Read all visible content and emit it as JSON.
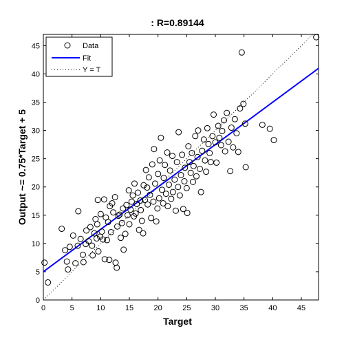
{
  "chart_data": {
    "type": "scatter",
    "title": ": R=0.89144",
    "xlabel": "Target",
    "ylabel": "Output ~= 0.75*Target + 5",
    "xlim": [
      0,
      48
    ],
    "ylim": [
      0,
      47
    ],
    "xticks": [
      0,
      5,
      10,
      15,
      20,
      25,
      30,
      35,
      40,
      45
    ],
    "yticks": [
      0,
      5,
      10,
      15,
      20,
      25,
      30,
      35,
      40,
      45
    ],
    "grid": false,
    "legend_position": "top-left",
    "legend": [
      {
        "label": "Data",
        "style": "circle"
      },
      {
        "label": "Fit",
        "style": "solid-line"
      },
      {
        "label": "Y = T",
        "style": "dotted-line"
      }
    ],
    "fit": {
      "slope": 0.75,
      "intercept": 5,
      "color": "#0000ff"
    },
    "identity_color": "#000000",
    "marker_color": "#000000",
    "series": [
      {
        "name": "Data",
        "points": [
          [
            0.2,
            6.6
          ],
          [
            0.8,
            3.1
          ],
          [
            3.2,
            12.6
          ],
          [
            3.8,
            8.8
          ],
          [
            4.1,
            6.8
          ],
          [
            4.3,
            5.4
          ],
          [
            4.6,
            9.4
          ],
          [
            5.2,
            11.4
          ],
          [
            5.6,
            6.5
          ],
          [
            6.0,
            9.6
          ],
          [
            6.1,
            15.7
          ],
          [
            6.5,
            10.8
          ],
          [
            6.9,
            8.0
          ],
          [
            7.0,
            6.7
          ],
          [
            7.4,
            9.9
          ],
          [
            7.5,
            12.3
          ],
          [
            7.9,
            10.4
          ],
          [
            8.2,
            12.9
          ],
          [
            8.5,
            9.6
          ],
          [
            8.6,
            7.9
          ],
          [
            8.9,
            11.8
          ],
          [
            9.1,
            14.3
          ],
          [
            9.3,
            10.9
          ],
          [
            9.4,
            13.4
          ],
          [
            9.5,
            17.7
          ],
          [
            9.6,
            8.6
          ],
          [
            9.9,
            11.2
          ],
          [
            10.0,
            15.2
          ],
          [
            10.2,
            12.1
          ],
          [
            10.4,
            10.7
          ],
          [
            10.6,
            17.8
          ],
          [
            10.7,
            7.2
          ],
          [
            10.9,
            14.6
          ],
          [
            11.1,
            10.6
          ],
          [
            11.3,
            13.8
          ],
          [
            11.5,
            7.1
          ],
          [
            11.6,
            16.6
          ],
          [
            11.8,
            12.0
          ],
          [
            12.0,
            17.1
          ],
          [
            12.2,
            15.5
          ],
          [
            12.5,
            18.2
          ],
          [
            12.6,
            6.6
          ],
          [
            12.8,
            5.7
          ],
          [
            12.9,
            13.0
          ],
          [
            13.1,
            14.9
          ],
          [
            13.3,
            15.1
          ],
          [
            13.5,
            11.0
          ],
          [
            13.7,
            13.6
          ],
          [
            13.9,
            16.2
          ],
          [
            14.0,
            8.9
          ],
          [
            14.3,
            11.7
          ],
          [
            14.5,
            16.8
          ],
          [
            14.7,
            15.0
          ],
          [
            14.9,
            19.4
          ],
          [
            15.0,
            13.4
          ],
          [
            15.2,
            16.0
          ],
          [
            15.4,
            17.4
          ],
          [
            15.6,
            18.5
          ],
          [
            15.8,
            14.8
          ],
          [
            15.9,
            20.6
          ],
          [
            16.1,
            15.3
          ],
          [
            16.3,
            17.0
          ],
          [
            16.5,
            19.0
          ],
          [
            16.7,
            12.4
          ],
          [
            16.9,
            17.6
          ],
          [
            17.0,
            15.9
          ],
          [
            17.2,
            14.0
          ],
          [
            17.4,
            11.8
          ],
          [
            17.5,
            20.3
          ],
          [
            17.7,
            17.7
          ],
          [
            17.9,
            23.0
          ],
          [
            18.1,
            19.9
          ],
          [
            18.2,
            16.9
          ],
          [
            18.4,
            21.7
          ],
          [
            18.6,
            18.6
          ],
          [
            18.8,
            14.5
          ],
          [
            19.0,
            24.0
          ],
          [
            19.2,
            17.4
          ],
          [
            19.3,
            26.7
          ],
          [
            19.5,
            20.6
          ],
          [
            19.7,
            13.9
          ],
          [
            19.9,
            16.2
          ],
          [
            20.0,
            22.3
          ],
          [
            20.2,
            18.0
          ],
          [
            20.3,
            24.7
          ],
          [
            20.5,
            28.7
          ],
          [
            20.7,
            19.5
          ],
          [
            20.9,
            17.1
          ],
          [
            21.0,
            21.6
          ],
          [
            21.2,
            23.9
          ],
          [
            21.4,
            18.8
          ],
          [
            21.6,
            26.1
          ],
          [
            21.7,
            16.6
          ],
          [
            21.9,
            20.4
          ],
          [
            22.1,
            22.9
          ],
          [
            22.3,
            17.9
          ],
          [
            22.5,
            25.5
          ],
          [
            22.6,
            19.1
          ],
          [
            22.9,
            21.3
          ],
          [
            23.1,
            15.8
          ],
          [
            23.3,
            24.4
          ],
          [
            23.5,
            20.0
          ],
          [
            23.6,
            29.7
          ],
          [
            23.8,
            18.5
          ],
          [
            24.0,
            22.1
          ],
          [
            24.2,
            25.7
          ],
          [
            24.4,
            16.1
          ],
          [
            24.6,
            21.0
          ],
          [
            24.7,
            23.4
          ],
          [
            25.0,
            19.8
          ],
          [
            25.1,
            15.4
          ],
          [
            25.3,
            27.2
          ],
          [
            25.5,
            24.4
          ],
          [
            25.7,
            22.5
          ],
          [
            25.9,
            26.0
          ],
          [
            26.1,
            20.9
          ],
          [
            26.2,
            23.7
          ],
          [
            26.5,
            29.0
          ],
          [
            26.7,
            21.9
          ],
          [
            26.9,
            25.3
          ],
          [
            27.0,
            30.0
          ],
          [
            27.3,
            23.2
          ],
          [
            27.5,
            19.1
          ],
          [
            27.7,
            26.4
          ],
          [
            28.0,
            28.4
          ],
          [
            28.2,
            24.7
          ],
          [
            28.4,
            22.7
          ],
          [
            28.6,
            30.4
          ],
          [
            28.8,
            27.6
          ],
          [
            29.0,
            26.0
          ],
          [
            29.2,
            24.4
          ],
          [
            29.5,
            29.0
          ],
          [
            29.7,
            32.8
          ],
          [
            30.0,
            27.9
          ],
          [
            30.2,
            24.3
          ],
          [
            30.5,
            30.8
          ],
          [
            30.7,
            28.7
          ],
          [
            31.0,
            27.4
          ],
          [
            31.2,
            29.9
          ],
          [
            31.5,
            31.8
          ],
          [
            31.7,
            26.3
          ],
          [
            32.0,
            33.1
          ],
          [
            32.3,
            28.0
          ],
          [
            32.6,
            22.8
          ],
          [
            32.8,
            30.5
          ],
          [
            33.1,
            27.0
          ],
          [
            33.4,
            32.0
          ],
          [
            33.7,
            29.5
          ],
          [
            34.0,
            26.2
          ],
          [
            34.3,
            33.9
          ],
          [
            34.6,
            43.8
          ],
          [
            34.9,
            34.7
          ],
          [
            35.2,
            31.2
          ],
          [
            35.3,
            23.5
          ],
          [
            38.2,
            31.0
          ],
          [
            39.5,
            30.3
          ],
          [
            40.2,
            28.3
          ],
          [
            47.6,
            46.5
          ]
        ]
      }
    ]
  }
}
